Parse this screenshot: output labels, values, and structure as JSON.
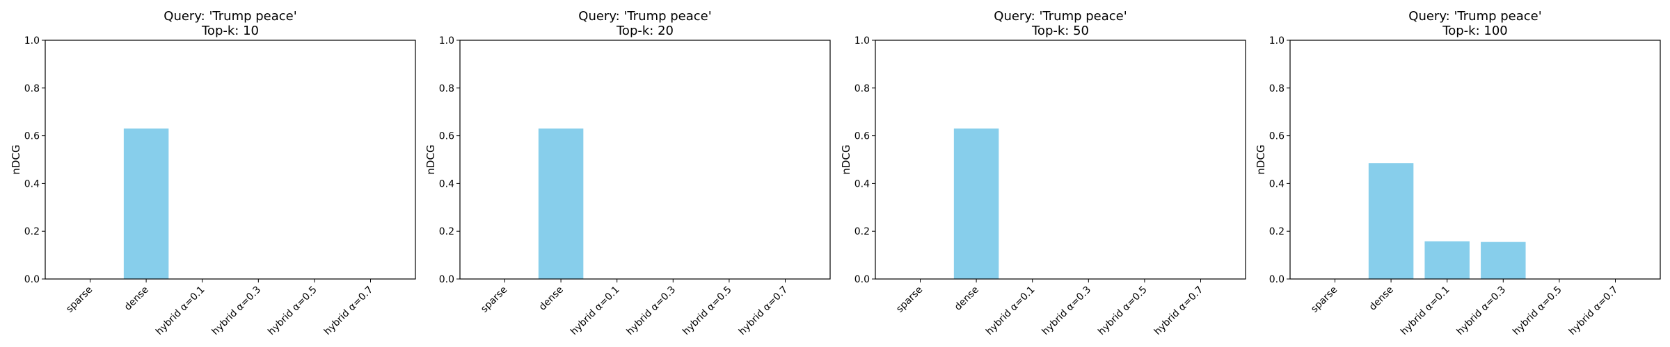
{
  "chart_data": [
    {
      "type": "bar",
      "title_line1": "Query: 'Trump peace'",
      "title_line2": "Top-k: 10",
      "xlabel": "",
      "ylabel": "nDCG",
      "ylim": [
        0,
        1.0
      ],
      "yticks": [
        "0.0",
        "0.2",
        "0.4",
        "0.6",
        "0.8",
        "1.0"
      ],
      "categories": [
        "sparse",
        "dense",
        "hybrid α=0.1",
        "hybrid α=0.3",
        "hybrid α=0.5",
        "hybrid α=0.7"
      ],
      "values": [
        0,
        0.63,
        0,
        0,
        0,
        0
      ],
      "bar_color": "#87CEEB"
    },
    {
      "type": "bar",
      "title_line1": "Query: 'Trump peace'",
      "title_line2": "Top-k: 20",
      "xlabel": "",
      "ylabel": "nDCG",
      "ylim": [
        0,
        1.0
      ],
      "yticks": [
        "0.0",
        "0.2",
        "0.4",
        "0.6",
        "0.8",
        "1.0"
      ],
      "categories": [
        "sparse",
        "dense",
        "hybrid α=0.1",
        "hybrid α=0.3",
        "hybrid α=0.5",
        "hybrid α=0.7"
      ],
      "values": [
        0,
        0.63,
        0,
        0,
        0,
        0
      ],
      "bar_color": "#87CEEB"
    },
    {
      "type": "bar",
      "title_line1": "Query: 'Trump peace'",
      "title_line2": "Top-k: 50",
      "xlabel": "",
      "ylabel": "nDCG",
      "ylim": [
        0,
        1.0
      ],
      "yticks": [
        "0.0",
        "0.2",
        "0.4",
        "0.6",
        "0.8",
        "1.0"
      ],
      "categories": [
        "sparse",
        "dense",
        "hybrid α=0.1",
        "hybrid α=0.3",
        "hybrid α=0.5",
        "hybrid α=0.7"
      ],
      "values": [
        0,
        0.63,
        0,
        0,
        0,
        0
      ],
      "bar_color": "#87CEEB"
    },
    {
      "type": "bar",
      "title_line1": "Query: 'Trump peace'",
      "title_line2": "Top-k: 100",
      "xlabel": "",
      "ylabel": "nDCG",
      "ylim": [
        0,
        1.0
      ],
      "yticks": [
        "0.0",
        "0.2",
        "0.4",
        "0.6",
        "0.8",
        "1.0"
      ],
      "categories": [
        "sparse",
        "dense",
        "hybrid α=0.1",
        "hybrid α=0.3",
        "hybrid α=0.5",
        "hybrid α=0.7"
      ],
      "values": [
        0,
        0.485,
        0.158,
        0.155,
        0,
        0
      ],
      "bar_color": "#87CEEB"
    }
  ]
}
